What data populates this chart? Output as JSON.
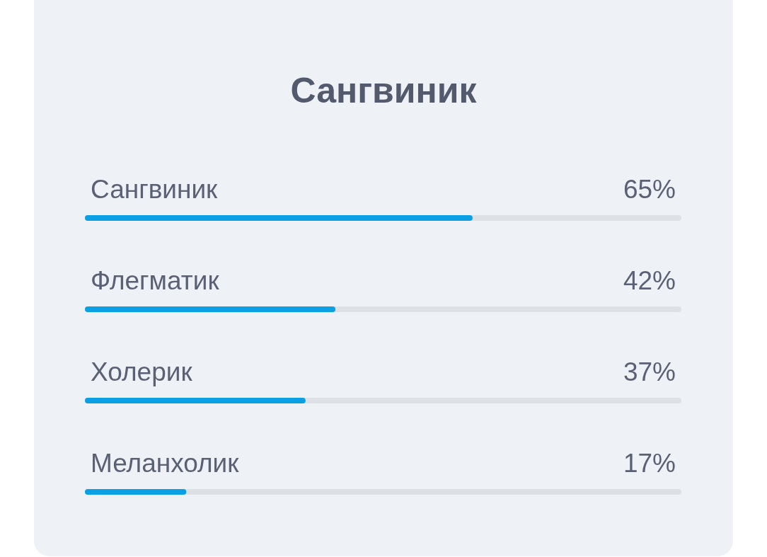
{
  "chart_data": {
    "type": "bar",
    "orientation": "horizontal",
    "title": "Сангвиник",
    "categories": [
      "Сангвиник",
      "Флегматик",
      "Холерик",
      "Меланхолик"
    ],
    "values": [
      65,
      42,
      37,
      17
    ],
    "value_labels": [
      "65%",
      "42%",
      "37%",
      "17%"
    ],
    "color": "#0ba0e4",
    "xlim": [
      0,
      100
    ],
    "tick_labels": "y",
    "grid": false
  }
}
